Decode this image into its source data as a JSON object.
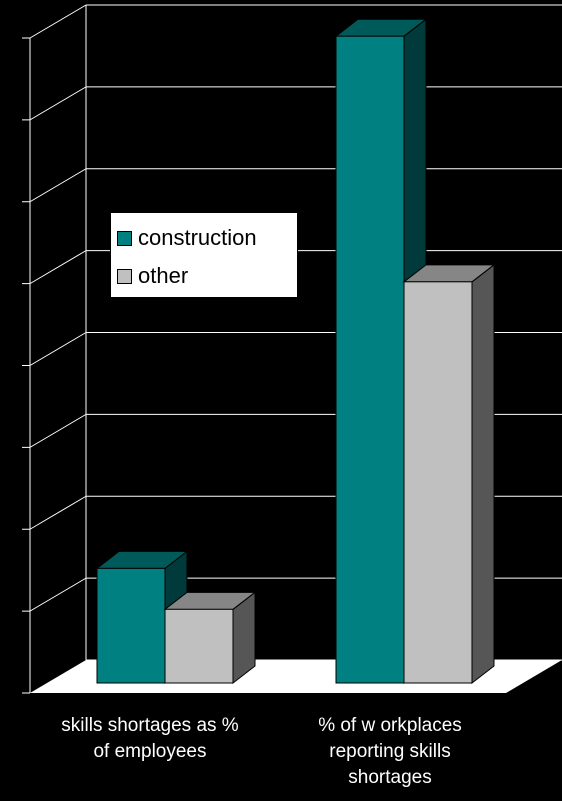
{
  "chart_data": {
    "type": "bar",
    "categories": [
      "skills shortages as %\nof employees",
      "% of w orkplaces\nreporting skills\nshortages"
    ],
    "series": [
      {
        "name": "construction",
        "values": [
          1.4,
          7.9
        ],
        "color": "#008080"
      },
      {
        "name": "other",
        "values": [
          0.9,
          4.9
        ],
        "color": "#c0c0c0"
      }
    ],
    "ylim": [
      0,
      8
    ],
    "grid": true,
    "legend_position": "left-middle",
    "background": "#000000"
  }
}
